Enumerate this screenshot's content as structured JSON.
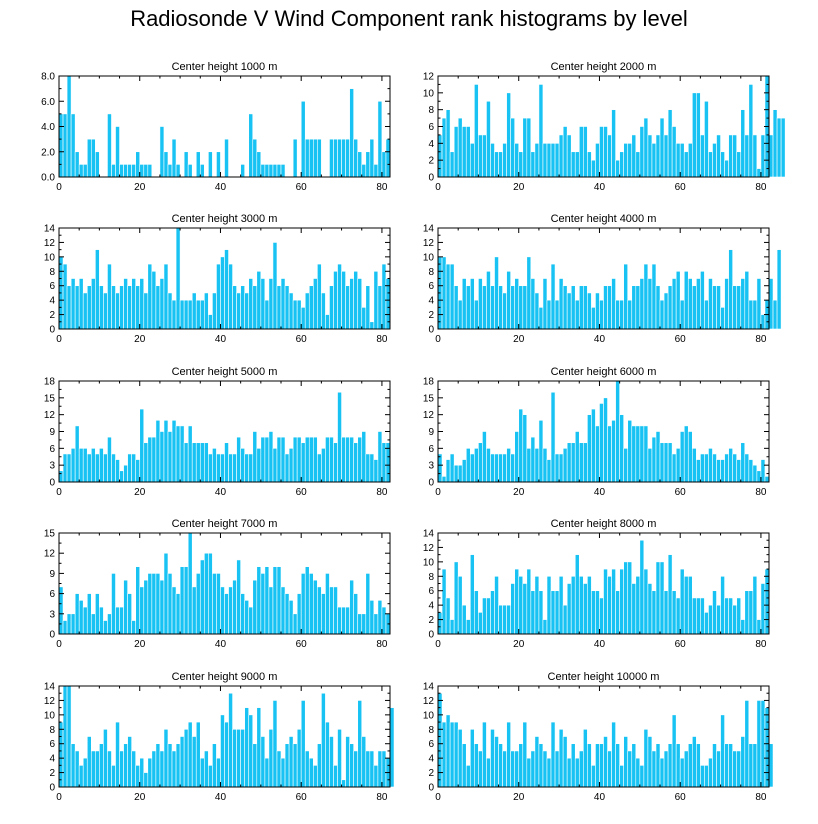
{
  "title": "Radiosonde V Wind Component rank histograms by level",
  "colors": {
    "bar_fill": "#18c3f3",
    "bar_stroke": "#ffffff",
    "axis": "#000000"
  },
  "chart_data": [
    {
      "type": "bar",
      "title": "Center height 1000 m",
      "xlim": [
        0,
        82
      ],
      "x_ticks": [
        0,
        20,
        40,
        60,
        80
      ],
      "ylim": [
        0,
        8
      ],
      "y_ticks": [
        "0.0",
        "2.0",
        "4.0",
        "6.0",
        "8.0"
      ],
      "values": [
        5,
        5,
        8,
        5,
        2,
        1,
        1,
        3,
        3,
        2,
        0,
        0,
        5,
        1,
        4,
        1,
        1,
        1,
        1,
        2,
        1,
        1,
        1,
        0,
        0,
        4,
        2,
        1,
        3,
        1,
        0,
        2,
        1,
        0,
        2,
        1,
        0,
        2,
        0,
        2,
        0,
        3,
        0,
        0,
        0,
        1,
        0,
        5,
        3,
        2,
        1,
        1,
        1,
        1,
        1,
        1,
        0,
        0,
        3,
        0,
        6,
        3,
        3,
        3,
        3,
        0,
        0,
        3,
        3,
        3,
        3,
        3,
        7,
        3,
        2,
        1,
        2,
        3,
        1,
        6,
        2,
        3
      ]
    },
    {
      "type": "bar",
      "title": "Center height 2000 m",
      "xlim": [
        0,
        82
      ],
      "x_ticks": [
        0,
        20,
        40,
        60,
        80
      ],
      "ylim": [
        0,
        12
      ],
      "y_ticks": [
        "0",
        "2",
        "4",
        "6",
        "8",
        "10",
        "12"
      ],
      "values": [
        5,
        7,
        8,
        3,
        6,
        7,
        6,
        6,
        4,
        11,
        5,
        5,
        9,
        4,
        3,
        3,
        4,
        10,
        7,
        4,
        3,
        7,
        7,
        3,
        4,
        11,
        4,
        4,
        4,
        4,
        5,
        6,
        5,
        3,
        3,
        6,
        6,
        3,
        2,
        4,
        6,
        6,
        5,
        8,
        2,
        3,
        4,
        4,
        5,
        3,
        6,
        7,
        5,
        4,
        5,
        7,
        5,
        8,
        6,
        4,
        4,
        3,
        4,
        10,
        10,
        5,
        9,
        3,
        4,
        5,
        3,
        2,
        5,
        5,
        3,
        8,
        5,
        11,
        5,
        1,
        5,
        12,
        5,
        8,
        7,
        7
      ]
    },
    {
      "type": "bar",
      "title": "Center height 3000 m",
      "xlim": [
        0,
        82
      ],
      "x_ticks": [
        0,
        20,
        40,
        60,
        80
      ],
      "ylim": [
        0,
        14
      ],
      "y_ticks": [
        "0",
        "2",
        "4",
        "6",
        "8",
        "10",
        "12",
        "14"
      ],
      "values": [
        10,
        9,
        6,
        7,
        6,
        7,
        5,
        6,
        7,
        11,
        6,
        5,
        9,
        6,
        5,
        6,
        7,
        6,
        7,
        6,
        7,
        5,
        9,
        8,
        6,
        7,
        9,
        5,
        4,
        14,
        4,
        4,
        4,
        5,
        4,
        4,
        5,
        2,
        5,
        9,
        10,
        11,
        9,
        6,
        5,
        6,
        5,
        7,
        6,
        8,
        7,
        4,
        7,
        12,
        6,
        7,
        6,
        5,
        4,
        4,
        3,
        5,
        6,
        7,
        9,
        5,
        2,
        6,
        8,
        9,
        8,
        6,
        7,
        8,
        7,
        3,
        6,
        1,
        8,
        6,
        9,
        7
      ]
    },
    {
      "type": "bar",
      "title": "Center height 4000 m",
      "xlim": [
        0,
        82
      ],
      "x_ticks": [
        0,
        20,
        40,
        60,
        80
      ],
      "ylim": [
        0,
        14
      ],
      "y_ticks": [
        "0",
        "2",
        "4",
        "6",
        "8",
        "10",
        "12",
        "14"
      ],
      "values": [
        10,
        10,
        9,
        9,
        6,
        4,
        7,
        6,
        7,
        4,
        7,
        6,
        8,
        6,
        10,
        6,
        5,
        8,
        6,
        7,
        6,
        6,
        10,
        7,
        5,
        3,
        7,
        4,
        9,
        4,
        7,
        6,
        5,
        6,
        4,
        6,
        6,
        5,
        3,
        5,
        4,
        6,
        6,
        7,
        4,
        4,
        9,
        4,
        6,
        6,
        7,
        9,
        7,
        9,
        6,
        4,
        5,
        6,
        7,
        8,
        4,
        8,
        7,
        6,
        7,
        8,
        4,
        7,
        6,
        6,
        3,
        7,
        11,
        6,
        6,
        7,
        8,
        4,
        4,
        7,
        2,
        4,
        7,
        4,
        11
      ]
    },
    {
      "type": "bar",
      "title": "Center height 5000 m",
      "xlim": [
        0,
        82
      ],
      "x_ticks": [
        0,
        20,
        40,
        60,
        80
      ],
      "ylim": [
        0,
        18
      ],
      "y_ticks": [
        "0",
        "3",
        "6",
        "9",
        "12",
        "15",
        "18"
      ],
      "values": [
        2,
        5,
        5,
        6,
        10,
        6,
        6,
        5,
        6,
        5,
        6,
        5,
        8,
        5,
        4,
        2,
        3,
        5,
        5,
        4,
        13,
        7,
        8,
        8,
        11,
        9,
        11,
        9,
        11,
        10,
        10,
        7,
        10,
        7,
        7,
        7,
        7,
        5,
        6,
        5,
        5,
        7,
        5,
        5,
        8,
        6,
        5,
        5,
        9,
        6,
        8,
        8,
        9,
        6,
        8,
        8,
        5,
        6,
        8,
        8,
        7,
        8,
        8,
        8,
        5,
        6,
        8,
        8,
        7,
        16,
        8,
        8,
        8,
        7,
        8,
        9,
        5,
        5,
        4,
        9,
        7,
        7
      ]
    },
    {
      "type": "bar",
      "title": "Center height 6000 m",
      "xlim": [
        0,
        82
      ],
      "x_ticks": [
        0,
        20,
        40,
        60,
        80
      ],
      "ylim": [
        0,
        18
      ],
      "y_ticks": [
        "0",
        "3",
        "6",
        "9",
        "12",
        "15",
        "18"
      ],
      "values": [
        5,
        1,
        4,
        5,
        3,
        3,
        4,
        6,
        5,
        6,
        7,
        9,
        6,
        5,
        5,
        5,
        5,
        6,
        5,
        9,
        13,
        12,
        6,
        8,
        6,
        11,
        6,
        4,
        16,
        5,
        5,
        6,
        7,
        7,
        9,
        7,
        7,
        12,
        13,
        10,
        14,
        15,
        10,
        11,
        18,
        12,
        6,
        11,
        10,
        10,
        10,
        10,
        6,
        8,
        9,
        7,
        7,
        7,
        5,
        6,
        9,
        10,
        9,
        6,
        4,
        5,
        5,
        6,
        5,
        4,
        4,
        5,
        6,
        5,
        4,
        7,
        5,
        4,
        3,
        2,
        4,
        1
      ]
    },
    {
      "type": "bar",
      "title": "Center height 7000 m",
      "xlim": [
        0,
        82
      ],
      "x_ticks": [
        0,
        20,
        40,
        60,
        80
      ],
      "ylim": [
        0,
        15
      ],
      "y_ticks": [
        "0",
        "3",
        "6",
        "9",
        "12",
        "15"
      ],
      "values": [
        7,
        2,
        3,
        3,
        6,
        5,
        4,
        6,
        3,
        6,
        4,
        2,
        3,
        9,
        4,
        4,
        8,
        6,
        2,
        10,
        7,
        8,
        9,
        9,
        9,
        8,
        12,
        9,
        7,
        6,
        10,
        10,
        15,
        7,
        9,
        11,
        12,
        12,
        9,
        9,
        7,
        6,
        7,
        8,
        11,
        6,
        5,
        4,
        8,
        10,
        9,
        10,
        7,
        10,
        10,
        7,
        6,
        5,
        3,
        6,
        9,
        10,
        9,
        8,
        7,
        6,
        9,
        7,
        7,
        4,
        4,
        4,
        8,
        6,
        3,
        3,
        9,
        5,
        3,
        5,
        4,
        3
      ]
    },
    {
      "type": "bar",
      "title": "Center height 8000 m",
      "xlim": [
        0,
        82
      ],
      "x_ticks": [
        0,
        20,
        40,
        60,
        80
      ],
      "ylim": [
        0,
        14
      ],
      "y_ticks": [
        "0",
        "2",
        "4",
        "6",
        "8",
        "10",
        "12",
        "14"
      ],
      "values": [
        3,
        9,
        5,
        2,
        10,
        8,
        4,
        2,
        11,
        6,
        3,
        5,
        5,
        6,
        8,
        4,
        4,
        4,
        7,
        9,
        8,
        7,
        9,
        6,
        8,
        6,
        2,
        8,
        6,
        6,
        8,
        4,
        7,
        8,
        11,
        8,
        7,
        8,
        6,
        6,
        5,
        9,
        8,
        9,
        6,
        9,
        10,
        10,
        7,
        8,
        13,
        9,
        7,
        6,
        10,
        10,
        6,
        11,
        6,
        5,
        9,
        8,
        8,
        5,
        5,
        5,
        3,
        4,
        6,
        4,
        8,
        5,
        5,
        4,
        5,
        2,
        6,
        6,
        8,
        2,
        7,
        9
      ]
    },
    {
      "type": "bar",
      "title": "Center height 9000 m",
      "xlim": [
        0,
        82
      ],
      "x_ticks": [
        0,
        20,
        40,
        60,
        80
      ],
      "ylim": [
        0,
        14
      ],
      "y_ticks": [
        "0",
        "2",
        "4",
        "6",
        "8",
        "10",
        "12",
        "14"
      ],
      "values": [
        9,
        14,
        14,
        6,
        5,
        3,
        4,
        7,
        5,
        5,
        6,
        8,
        5,
        3,
        9,
        5,
        6,
        7,
        5,
        3,
        4,
        2,
        4,
        5,
        6,
        5,
        8,
        6,
        5,
        6,
        7,
        8,
        9,
        7,
        9,
        4,
        5,
        3,
        6,
        4,
        10,
        9,
        13,
        8,
        8,
        8,
        11,
        10,
        6,
        11,
        7,
        4,
        8,
        12,
        5,
        4,
        6,
        7,
        6,
        8,
        12,
        5,
        4,
        3,
        6,
        13,
        9,
        7,
        3,
        8,
        1,
        7,
        6,
        5,
        12,
        7,
        5,
        5,
        3,
        5,
        5,
        4,
        11
      ]
    },
    {
      "type": "bar",
      "title": "Center height 10000 m",
      "xlim": [
        0,
        82
      ],
      "x_ticks": [
        0,
        20,
        40,
        60,
        80
      ],
      "ylim": [
        0,
        14
      ],
      "y_ticks": [
        "0",
        "2",
        "4",
        "6",
        "8",
        "10",
        "12",
        "14"
      ],
      "values": [
        13,
        9,
        10,
        9,
        9,
        8,
        6,
        3,
        8,
        6,
        5,
        9,
        4,
        8,
        7,
        6,
        5,
        9,
        5,
        5,
        6,
        9,
        4,
        5,
        7,
        6,
        5,
        4,
        9,
        5,
        8,
        7,
        4,
        6,
        4,
        5,
        8,
        6,
        3,
        6,
        6,
        7,
        5,
        9,
        6,
        3,
        7,
        5,
        6,
        4,
        3,
        8,
        7,
        5,
        6,
        4,
        5,
        6,
        10,
        6,
        4,
        5,
        6,
        7,
        6,
        3,
        3,
        4,
        6,
        5,
        10,
        6,
        6,
        5,
        5,
        7,
        12,
        6,
        6,
        12,
        12,
        11,
        6
      ]
    }
  ]
}
